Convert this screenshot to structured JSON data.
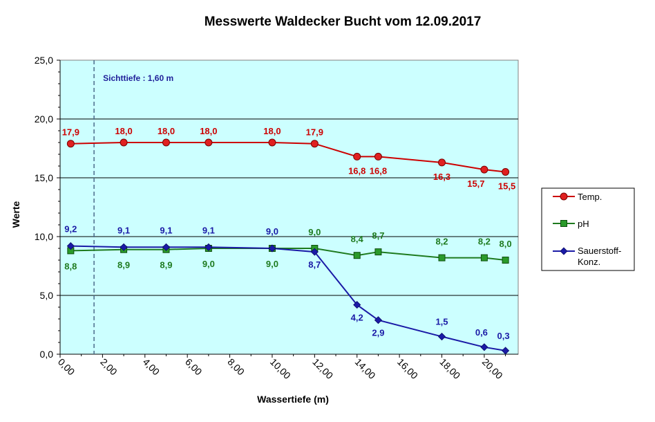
{
  "chart_data": {
    "type": "line",
    "title": "Messwerte Waldecker  Bucht vom 12.09.2017",
    "xlabel": "Wassertiefe  (m)",
    "ylabel": "Werte",
    "xlim": [
      0,
      21.6
    ],
    "ylim": [
      0,
      25
    ],
    "x_ticks": [
      "0,00",
      "2,00",
      "4,00",
      "6,00",
      "8,00",
      "10,00",
      "12,00",
      "14,00",
      "16,00",
      "18,00",
      "20,00"
    ],
    "y_ticks": [
      "0,0",
      "5,0",
      "10,0",
      "15,0",
      "20,0",
      "25,0"
    ],
    "grid": "horizontal major",
    "legend_position": "right",
    "plot_background": "#ccffff",
    "annotation": {
      "text": "Sichttiefe : 1,60 m",
      "x": 1.6
    },
    "series": [
      {
        "name": "Temp.",
        "color": "#cc0000",
        "fill": "#e02020",
        "marker": "circle",
        "x": [
          0.5,
          3,
          5,
          7,
          10,
          12,
          14,
          15,
          18,
          20,
          21
        ],
        "values": [
          17.9,
          18.0,
          18.0,
          18.0,
          18.0,
          17.9,
          16.8,
          16.8,
          16.3,
          15.7,
          15.5
        ],
        "labels": [
          "17,9",
          "18,0",
          "18,0",
          "18,0",
          "18,0",
          "17,9",
          "16,8",
          "16,8",
          "16,3",
          "15,7",
          "15,5"
        ],
        "label_pos": [
          "above",
          "above",
          "above",
          "above",
          "above",
          "above",
          "below",
          "below",
          "below",
          "below",
          "below"
        ]
      },
      {
        "name": "pH",
        "color": "#1e7a1e",
        "fill": "#2a9a2a",
        "marker": "square",
        "x": [
          0.5,
          3,
          5,
          7,
          10,
          12,
          14,
          15,
          18,
          20,
          21
        ],
        "values": [
          8.8,
          8.9,
          8.9,
          9.0,
          9.0,
          9.0,
          8.4,
          8.7,
          8.2,
          8.2,
          8.0
        ],
        "labels": [
          "8,8",
          "8,9",
          "8,9",
          "9,0",
          "9,0",
          "9,0",
          "8,4",
          "8,7",
          "8,2",
          "8,2",
          "8,0"
        ],
        "label_pos": [
          "below",
          "below",
          "below",
          "below",
          "below",
          "above",
          "above",
          "above",
          "above",
          "above",
          "above"
        ]
      },
      {
        "name": "Sauerstoff-Konz.",
        "color": "#1a1aa6",
        "fill": "#1a1aa6",
        "marker": "diamond",
        "x": [
          0.5,
          3,
          5,
          7,
          10,
          12,
          14,
          15,
          18,
          20,
          21
        ],
        "values": [
          9.2,
          9.1,
          9.1,
          9.1,
          9.0,
          8.7,
          4.2,
          2.9,
          1.5,
          0.6,
          0.3
        ],
        "labels": [
          "9,2",
          "9,1",
          "9,1",
          "9,1",
          "9,0",
          "8,7",
          "4,2",
          "2,9",
          "1,5",
          "0,6",
          "0,3"
        ],
        "label_pos": [
          "above",
          "above",
          "above",
          "above",
          "above",
          "below",
          "below",
          "below",
          "above",
          "above",
          "above"
        ]
      }
    ],
    "legend_entries": [
      "Temp.",
      "pH",
      "Sauerstoff-",
      "Konz."
    ]
  }
}
